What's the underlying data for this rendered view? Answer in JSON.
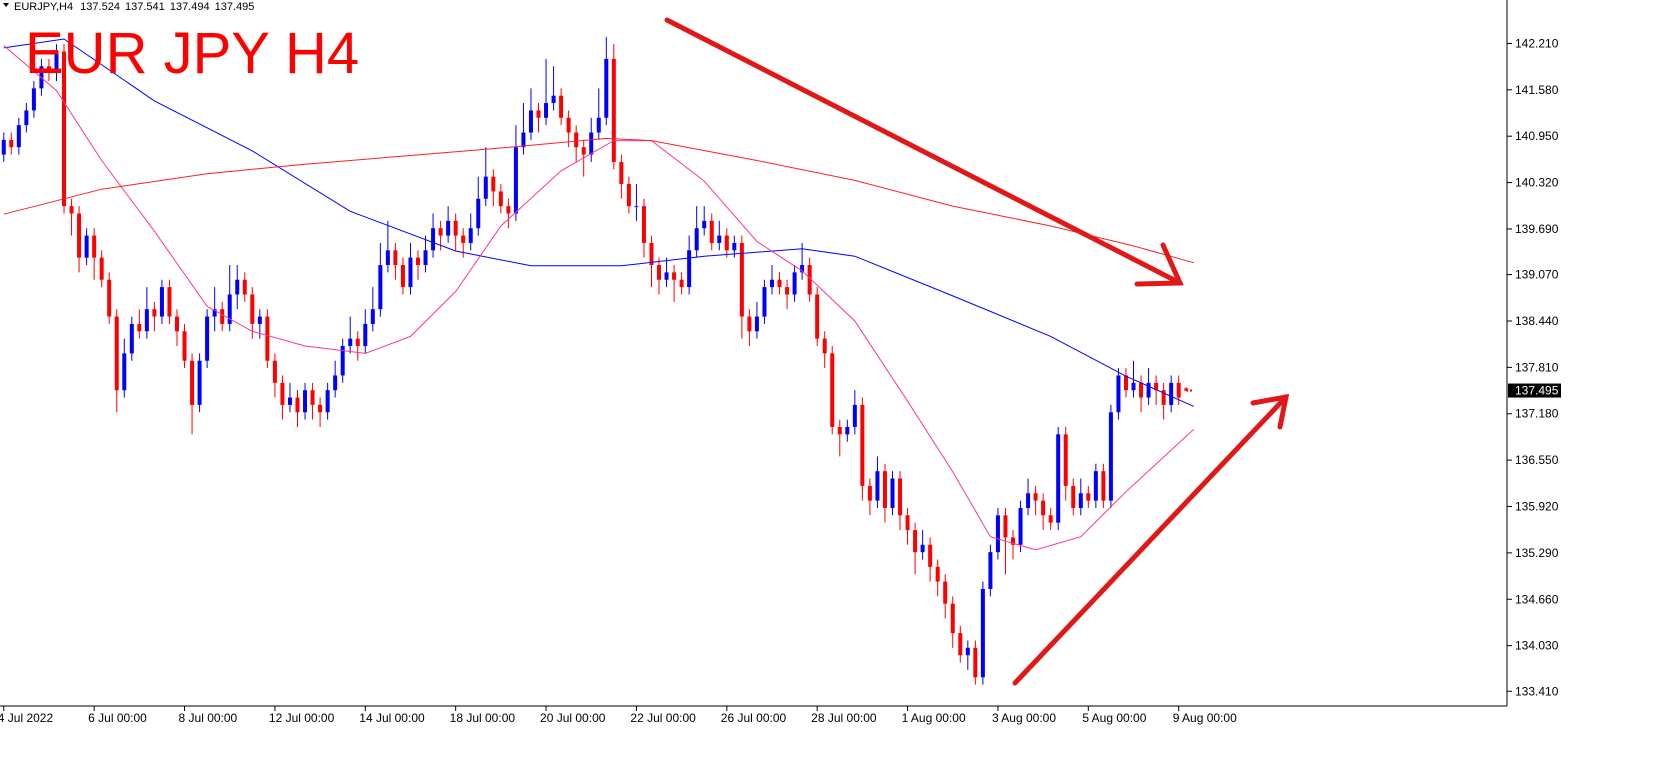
{
  "chart_data": {
    "type": "candlestick",
    "title": "EUR JPY H4",
    "symbol": "EURJPY,H4",
    "bull_color": "#0000ff",
    "bear_color": "#ff0000",
    "ylim": [
      133.21,
      142.8
    ],
    "yticks": [
      {
        "value": 142.21,
        "label": "142.210"
      },
      {
        "value": 141.58,
        "label": "141.580"
      },
      {
        "value": 140.95,
        "label": "140.950"
      },
      {
        "value": 140.32,
        "label": "140.320"
      },
      {
        "value": 139.69,
        "label": "139.690"
      },
      {
        "value": 139.07,
        "label": "139.070"
      },
      {
        "value": 138.44,
        "label": "138.440"
      },
      {
        "value": 137.81,
        "label": "137.810"
      },
      {
        "value": 137.18,
        "label": "137.180"
      },
      {
        "value": 136.55,
        "label": "136.550"
      },
      {
        "value": 135.92,
        "label": "135.920"
      },
      {
        "value": 135.29,
        "label": "135.290"
      },
      {
        "value": 134.66,
        "label": "134.660"
      },
      {
        "value": 134.03,
        "label": "134.030"
      },
      {
        "value": 133.41,
        "label": "133.410"
      }
    ],
    "categories": [
      "4 Jul 2022",
      null,
      null,
      null,
      null,
      null,
      null,
      null,
      null,
      null,
      null,
      null,
      "6 Jul 00:00",
      null,
      null,
      null,
      null,
      null,
      null,
      null,
      null,
      null,
      null,
      null,
      "8 Jul 00:00",
      null,
      null,
      null,
      null,
      null,
      null,
      null,
      null,
      null,
      null,
      null,
      "12 Jul 00:00",
      null,
      null,
      null,
      null,
      null,
      null,
      null,
      null,
      null,
      null,
      null,
      "14 Jul 00:00",
      null,
      null,
      null,
      null,
      null,
      null,
      null,
      null,
      null,
      null,
      null,
      "18 Jul 00:00",
      null,
      null,
      null,
      null,
      null,
      null,
      null,
      null,
      null,
      null,
      null,
      "20 Jul 00:00",
      null,
      null,
      null,
      null,
      null,
      null,
      null,
      null,
      null,
      null,
      null,
      "22 Jul 00:00",
      null,
      null,
      null,
      null,
      null,
      null,
      null,
      null,
      null,
      null,
      null,
      "26 Jul 00:00",
      null,
      null,
      null,
      null,
      null,
      null,
      null,
      null,
      null,
      null,
      null,
      "28 Jul 00:00",
      null,
      null,
      null,
      null,
      null,
      null,
      null,
      null,
      null,
      null,
      null,
      "1 Aug 00:00",
      null,
      null,
      null,
      null,
      null,
      null,
      null,
      null,
      null,
      null,
      null,
      "3 Aug 00:00",
      null,
      null,
      null,
      null,
      null,
      null,
      null,
      null,
      null,
      null,
      null,
      "5 Aug 00:00",
      null,
      null,
      null,
      null,
      null,
      null,
      null,
      null,
      null,
      null,
      null,
      "9 Aug 00:00",
      null
    ],
    "candles": [
      [
        140.7,
        141.0,
        140.6,
        140.9
      ],
      [
        140.9,
        141.0,
        140.7,
        140.8
      ],
      [
        140.8,
        141.2,
        140.7,
        141.1
      ],
      [
        141.1,
        141.4,
        141.0,
        141.3
      ],
      [
        141.3,
        141.7,
        141.2,
        141.6
      ],
      [
        141.6,
        142.0,
        141.5,
        141.9
      ],
      [
        141.9,
        142.0,
        141.7,
        141.85
      ],
      [
        141.85,
        142.2,
        141.7,
        142.1
      ],
      [
        142.1,
        142.2,
        139.9,
        140.0
      ],
      [
        140.0,
        140.1,
        139.6,
        139.9
      ],
      [
        139.9,
        140.0,
        139.1,
        139.3
      ],
      [
        139.3,
        139.7,
        139.2,
        139.6
      ],
      [
        139.6,
        139.7,
        139.0,
        139.3
      ],
      [
        139.3,
        139.4,
        138.9,
        139.0
      ],
      [
        139.0,
        139.1,
        138.4,
        138.5
      ],
      [
        138.5,
        138.6,
        137.2,
        137.5
      ],
      [
        137.5,
        138.2,
        137.4,
        138.0
      ],
      [
        138.0,
        138.5,
        137.9,
        138.4
      ],
      [
        138.4,
        138.6,
        138.2,
        138.3
      ],
      [
        138.3,
        138.9,
        138.2,
        138.6
      ],
      [
        138.6,
        138.7,
        138.3,
        138.5
      ],
      [
        138.5,
        139.0,
        138.4,
        138.9
      ],
      [
        138.9,
        139.0,
        138.4,
        138.5
      ],
      [
        138.5,
        138.6,
        138.1,
        138.3
      ],
      [
        138.3,
        138.4,
        137.8,
        137.9
      ],
      [
        137.9,
        138.0,
        136.9,
        137.3
      ],
      [
        137.3,
        138.0,
        137.2,
        137.9
      ],
      [
        137.9,
        138.6,
        137.8,
        138.5
      ],
      [
        138.5,
        138.9,
        138.3,
        138.6
      ],
      [
        138.6,
        138.7,
        138.3,
        138.4
      ],
      [
        138.4,
        139.2,
        138.3,
        138.8
      ],
      [
        138.8,
        139.2,
        138.6,
        139.0
      ],
      [
        139.0,
        139.1,
        138.7,
        138.8
      ],
      [
        138.8,
        138.9,
        138.2,
        138.4
      ],
      [
        138.4,
        138.6,
        138.2,
        138.5
      ],
      [
        138.5,
        138.6,
        137.8,
        137.9
      ],
      [
        137.9,
        138.0,
        137.4,
        137.6
      ],
      [
        137.6,
        137.7,
        137.1,
        137.3
      ],
      [
        137.3,
        137.6,
        137.2,
        137.4
      ],
      [
        137.4,
        137.5,
        137.0,
        137.2
      ],
      [
        137.2,
        137.6,
        137.1,
        137.5
      ],
      [
        137.5,
        137.6,
        137.1,
        137.3
      ],
      [
        137.3,
        137.4,
        137.0,
        137.2
      ],
      [
        137.2,
        137.6,
        137.1,
        137.5
      ],
      [
        137.5,
        137.9,
        137.4,
        137.7
      ],
      [
        137.7,
        138.2,
        137.6,
        138.1
      ],
      [
        138.1,
        138.5,
        138.0,
        138.2
      ],
      [
        138.2,
        138.3,
        137.9,
        138.1
      ],
      [
        138.1,
        138.6,
        138.0,
        138.4
      ],
      [
        138.4,
        138.9,
        138.3,
        138.6
      ],
      [
        138.6,
        139.5,
        138.5,
        139.2
      ],
      [
        139.2,
        139.8,
        139.1,
        139.4
      ],
      [
        139.4,
        139.5,
        139.0,
        139.2
      ],
      [
        139.2,
        139.3,
        138.8,
        138.9
      ],
      [
        138.9,
        139.5,
        138.8,
        139.3
      ],
      [
        139.3,
        139.4,
        139.0,
        139.2
      ],
      [
        139.2,
        139.6,
        139.1,
        139.4
      ],
      [
        139.4,
        139.9,
        139.3,
        139.7
      ],
      [
        139.7,
        139.8,
        139.4,
        139.6
      ],
      [
        139.6,
        140.0,
        139.5,
        139.8
      ],
      [
        139.8,
        139.9,
        139.4,
        139.6
      ],
      [
        139.6,
        139.7,
        139.3,
        139.5
      ],
      [
        139.5,
        139.9,
        139.4,
        139.7
      ],
      [
        139.7,
        140.4,
        139.6,
        140.1
      ],
      [
        140.1,
        140.8,
        140.0,
        140.4
      ],
      [
        140.4,
        140.5,
        140.0,
        140.2
      ],
      [
        140.2,
        140.3,
        139.9,
        140.0
      ],
      [
        140.0,
        140.1,
        139.7,
        139.9
      ],
      [
        139.9,
        141.1,
        139.8,
        140.8
      ],
      [
        140.8,
        141.4,
        140.7,
        141.0
      ],
      [
        141.0,
        141.6,
        140.9,
        141.3
      ],
      [
        141.3,
        141.4,
        141.0,
        141.2
      ],
      [
        141.2,
        142.0,
        141.1,
        141.4
      ],
      [
        141.4,
        141.9,
        141.3,
        141.5
      ],
      [
        141.5,
        141.6,
        141.1,
        141.2
      ],
      [
        141.2,
        141.3,
        140.8,
        141.0
      ],
      [
        141.0,
        141.1,
        140.6,
        140.8
      ],
      [
        140.8,
        140.9,
        140.4,
        140.7
      ],
      [
        140.7,
        141.2,
        140.6,
        141.0
      ],
      [
        141.0,
        141.6,
        140.9,
        141.2
      ],
      [
        141.2,
        142.3,
        141.1,
        142.0
      ],
      [
        142.0,
        142.2,
        140.5,
        140.6
      ],
      [
        140.6,
        140.7,
        140.1,
        140.3
      ],
      [
        140.3,
        140.4,
        139.9,
        140.0
      ],
      [
        140.0,
        140.3,
        139.8,
        140.0
      ],
      [
        140.0,
        140.1,
        139.3,
        139.5
      ],
      [
        139.5,
        139.6,
        138.9,
        139.2
      ],
      [
        139.2,
        139.3,
        138.8,
        139.0
      ],
      [
        139.0,
        139.3,
        138.9,
        139.1
      ],
      [
        139.1,
        139.2,
        138.7,
        139.0
      ],
      [
        139.0,
        139.1,
        138.8,
        138.9
      ],
      [
        138.9,
        139.6,
        138.8,
        139.4
      ],
      [
        139.4,
        140.0,
        139.3,
        139.7
      ],
      [
        139.7,
        140.0,
        139.6,
        139.8
      ],
      [
        139.8,
        139.9,
        139.4,
        139.5
      ],
      [
        139.5,
        139.8,
        139.4,
        139.6
      ],
      [
        139.6,
        139.7,
        139.3,
        139.4
      ],
      [
        139.4,
        139.6,
        139.3,
        139.5
      ],
      [
        139.5,
        139.6,
        138.2,
        138.5
      ],
      [
        138.5,
        138.6,
        138.1,
        138.3
      ],
      [
        138.3,
        138.7,
        138.2,
        138.5
      ],
      [
        138.5,
        139.0,
        138.4,
        138.9
      ],
      [
        138.9,
        139.2,
        138.8,
        139.0
      ],
      [
        139.0,
        139.1,
        138.8,
        138.9
      ],
      [
        138.9,
        139.0,
        138.6,
        138.8
      ],
      [
        138.8,
        139.2,
        138.7,
        139.1
      ],
      [
        139.1,
        139.5,
        139.0,
        139.2
      ],
      [
        139.2,
        139.3,
        138.7,
        138.8
      ],
      [
        138.8,
        138.9,
        138.1,
        138.2
      ],
      [
        138.2,
        138.3,
        137.8,
        138.0
      ],
      [
        138.0,
        138.1,
        136.9,
        137.0
      ],
      [
        137.0,
        137.1,
        136.6,
        136.9
      ],
      [
        136.9,
        137.1,
        136.8,
        137.0
      ],
      [
        137.0,
        137.5,
        136.9,
        137.3
      ],
      [
        137.3,
        137.4,
        136.0,
        136.2
      ],
      [
        136.2,
        136.3,
        135.8,
        136.0
      ],
      [
        136.0,
        136.6,
        135.9,
        136.4
      ],
      [
        136.4,
        136.5,
        135.7,
        135.9
      ],
      [
        135.9,
        136.4,
        135.8,
        136.3
      ],
      [
        136.3,
        136.4,
        135.6,
        135.8
      ],
      [
        135.8,
        135.9,
        135.4,
        135.6
      ],
      [
        135.6,
        135.7,
        135.0,
        135.3
      ],
      [
        135.3,
        135.6,
        135.2,
        135.4
      ],
      [
        135.4,
        135.5,
        134.9,
        135.1
      ],
      [
        135.1,
        135.2,
        134.7,
        134.9
      ],
      [
        134.9,
        135.0,
        134.4,
        134.6
      ],
      [
        134.6,
        134.7,
        134.0,
        134.2
      ],
      [
        134.2,
        134.3,
        133.8,
        133.9
      ],
      [
        133.9,
        134.1,
        133.7,
        134.0
      ],
      [
        134.0,
        134.1,
        133.5,
        133.6
      ],
      [
        133.6,
        134.9,
        133.5,
        134.8
      ],
      [
        134.8,
        135.4,
        134.7,
        135.3
      ],
      [
        135.3,
        135.9,
        135.2,
        135.8
      ],
      [
        135.8,
        135.9,
        135.0,
        135.5
      ],
      [
        135.5,
        135.6,
        135.2,
        135.4
      ],
      [
        135.4,
        136.0,
        135.3,
        135.9
      ],
      [
        135.9,
        136.3,
        135.8,
        136.1
      ],
      [
        136.1,
        136.2,
        135.8,
        136.0
      ],
      [
        136.0,
        136.1,
        135.6,
        135.8
      ],
      [
        135.8,
        135.9,
        135.6,
        135.7
      ],
      [
        135.7,
        137.0,
        135.6,
        136.9
      ],
      [
        136.9,
        137.0,
        136.0,
        136.2
      ],
      [
        136.2,
        136.3,
        135.8,
        135.9
      ],
      [
        135.9,
        136.3,
        135.8,
        136.1
      ],
      [
        136.1,
        136.2,
        135.9,
        136.0
      ],
      [
        136.0,
        136.5,
        135.9,
        136.4
      ],
      [
        136.4,
        136.5,
        135.9,
        136.0
      ],
      [
        136.0,
        137.3,
        135.9,
        137.2
      ],
      [
        137.2,
        137.8,
        137.1,
        137.7
      ],
      [
        137.7,
        137.8,
        137.4,
        137.5
      ],
      [
        137.5,
        137.9,
        137.4,
        137.6
      ],
      [
        137.6,
        137.7,
        137.2,
        137.4
      ],
      [
        137.4,
        137.8,
        137.3,
        137.6
      ],
      [
        137.6,
        137.7,
        137.3,
        137.5
      ],
      [
        137.5,
        137.6,
        137.1,
        137.3
      ],
      [
        137.3,
        137.7,
        137.2,
        137.6
      ],
      [
        137.6,
        137.7,
        137.3,
        137.4
      ],
      [
        137.524,
        137.541,
        137.494,
        137.495
      ]
    ],
    "series": [
      {
        "color": "#0000ff",
        "x": [
          0,
          8,
          20,
          33,
          46,
          60,
          70,
          82,
          93,
          106,
          113,
          126,
          139,
          149,
          158
        ],
        "values": [
          142.15,
          142.27,
          141.43,
          140.75,
          139.93,
          139.39,
          139.19,
          139.19,
          139.32,
          139.42,
          139.32,
          138.78,
          138.23,
          137.69,
          137.28
        ]
      },
      {
        "color": "#ff3399",
        "x": [
          0,
          7,
          13,
          20,
          27,
          33,
          40,
          48,
          54,
          60,
          66,
          74,
          81,
          86,
          93,
          100,
          106,
          113,
          120,
          126,
          131,
          137,
          143,
          149,
          158
        ],
        "values": [
          142.18,
          141.57,
          140.62,
          139.66,
          138.64,
          138.3,
          138.1,
          138.0,
          138.23,
          138.84,
          139.73,
          140.48,
          140.89,
          140.89,
          140.34,
          139.52,
          139.12,
          138.44,
          137.35,
          136.39,
          135.51,
          135.33,
          135.51,
          136.12,
          136.97
        ]
      },
      {
        "color": "#ff2020",
        "x": [
          0,
          13,
          27,
          40,
          53,
          66,
          80,
          86,
          100,
          113,
          126,
          139,
          150,
          158
        ],
        "values": [
          139.89,
          140.23,
          140.44,
          140.57,
          140.68,
          140.79,
          140.92,
          140.89,
          140.62,
          140.35,
          140.0,
          139.73,
          139.46,
          139.23
        ]
      }
    ]
  }
}
